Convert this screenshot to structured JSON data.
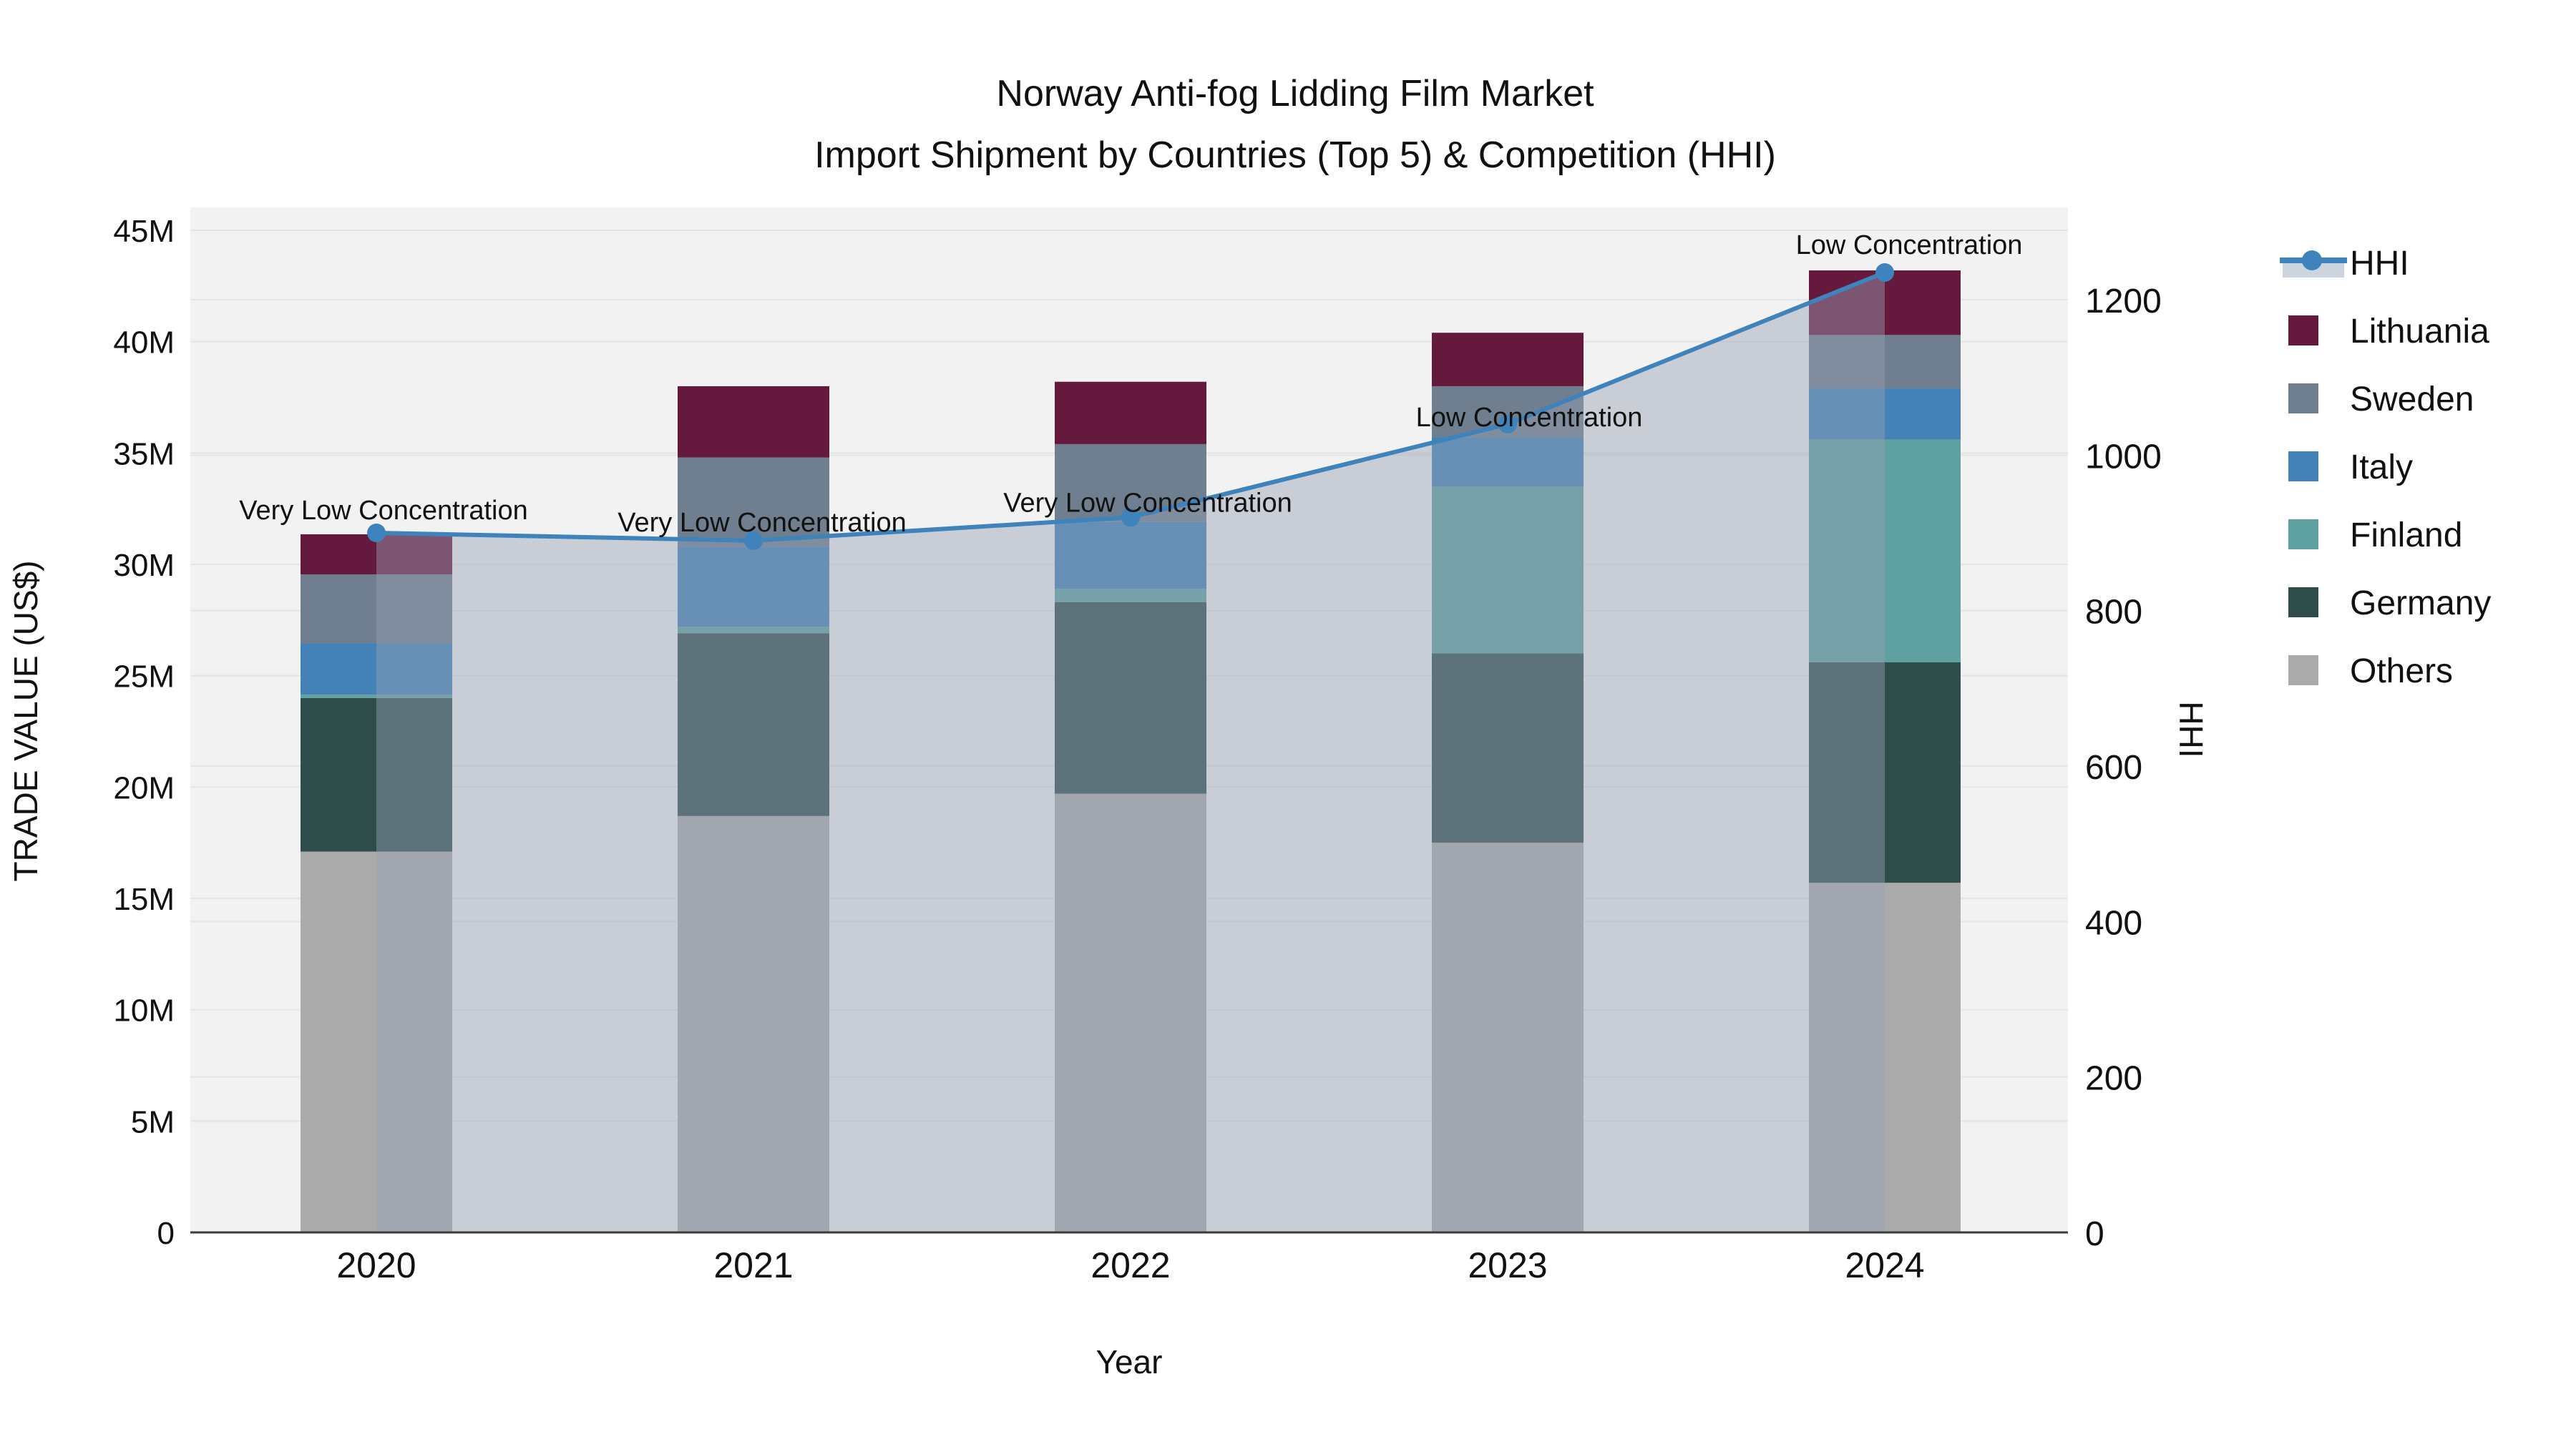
{
  "title": {
    "line1": "Norway Anti-fog Lidding Film Market",
    "line2": "Import Shipment by Countries (Top 5) & Competition (HHI)"
  },
  "axes": {
    "left": {
      "title": "TRADE VALUE (US$)",
      "tick_values": [
        0,
        5,
        10,
        15,
        20,
        25,
        30,
        35,
        40,
        45
      ],
      "tick_labels": [
        "0",
        "5M",
        "10M",
        "15M",
        "20M",
        "25M",
        "30M",
        "35M",
        "40M",
        "45M"
      ]
    },
    "right": {
      "title": "HHI",
      "tick_values": [
        0,
        200,
        400,
        600,
        800,
        1000,
        1200
      ],
      "tick_labels": [
        "0",
        "200",
        "400",
        "600",
        "800",
        "1000",
        "1200"
      ]
    },
    "x": {
      "title": "Year",
      "categories": [
        "2020",
        "2021",
        "2022",
        "2023",
        "2024"
      ]
    }
  },
  "legend": {
    "items": [
      {
        "label": "HHI",
        "kind": "line",
        "color": "#3E83BB",
        "band": "#CCD4DE"
      },
      {
        "label": "Lithuania",
        "kind": "swatch",
        "color": "#65193C"
      },
      {
        "label": "Sweden",
        "kind": "swatch",
        "color": "#6F7F8F"
      },
      {
        "label": "Italy",
        "kind": "swatch",
        "color": "#4381B7"
      },
      {
        "label": "Finland",
        "kind": "swatch",
        "color": "#5FA0A0"
      },
      {
        "label": "Germany",
        "kind": "swatch",
        "color": "#2E4D4B"
      },
      {
        "label": "Others",
        "kind": "swatch",
        "color": "#ABABAB"
      }
    ]
  },
  "chart_data": {
    "type": "combo: stacked bar (left axis) + line with area fill (right axis)",
    "categories": [
      "2020",
      "2021",
      "2022",
      "2023",
      "2024"
    ],
    "bar_unit": "million US$",
    "series": [
      {
        "name": "Others",
        "color": "#ABABAB",
        "values": [
          17.1,
          18.7,
          19.7,
          17.5,
          15.7
        ]
      },
      {
        "name": "Germany",
        "color": "#2E4D4B",
        "values": [
          6.9,
          8.2,
          8.6,
          8.5,
          9.9
        ]
      },
      {
        "name": "Finland",
        "color": "#5FA0A0",
        "values": [
          0.15,
          0.3,
          0.6,
          7.5,
          10.0
        ]
      },
      {
        "name": "Italy",
        "color": "#4381B7",
        "values": [
          2.3,
          3.6,
          3.0,
          2.2,
          2.3
        ]
      },
      {
        "name": "Sweden",
        "color": "#6F7F8F",
        "values": [
          3.1,
          4.0,
          3.5,
          2.3,
          2.4
        ]
      },
      {
        "name": "Lithuania",
        "color": "#65193C",
        "values": [
          1.8,
          3.2,
          2.8,
          2.4,
          2.9
        ]
      }
    ],
    "bar_totals": [
      31.35,
      38.0,
      38.2,
      40.4,
      43.2
    ],
    "line": {
      "name": "HHI",
      "color": "#3E83BB",
      "area_fill": "rgba(150,160,180,0.45)",
      "values": [
        900,
        890,
        920,
        1040,
        1235
      ]
    },
    "annotations": [
      {
        "category": "2020",
        "text": "Very Low Concentration"
      },
      {
        "category": "2021",
        "text": "Very Low Concentration"
      },
      {
        "category": "2022",
        "text": "Very Low Concentration"
      },
      {
        "category": "2023",
        "text": "Low Concentration"
      },
      {
        "category": "2024",
        "text": "Low Concentration"
      }
    ],
    "ylim_left_millions": [
      0,
      46
    ],
    "ylim_right_hhi": [
      0,
      1318
    ],
    "grid": "horizontal gridlines for both axes",
    "legend_position": "right",
    "plot_background": "#F2F2F2",
    "gridline_color": "#E5E5E5",
    "axisline_color": "#3B3B3B"
  }
}
